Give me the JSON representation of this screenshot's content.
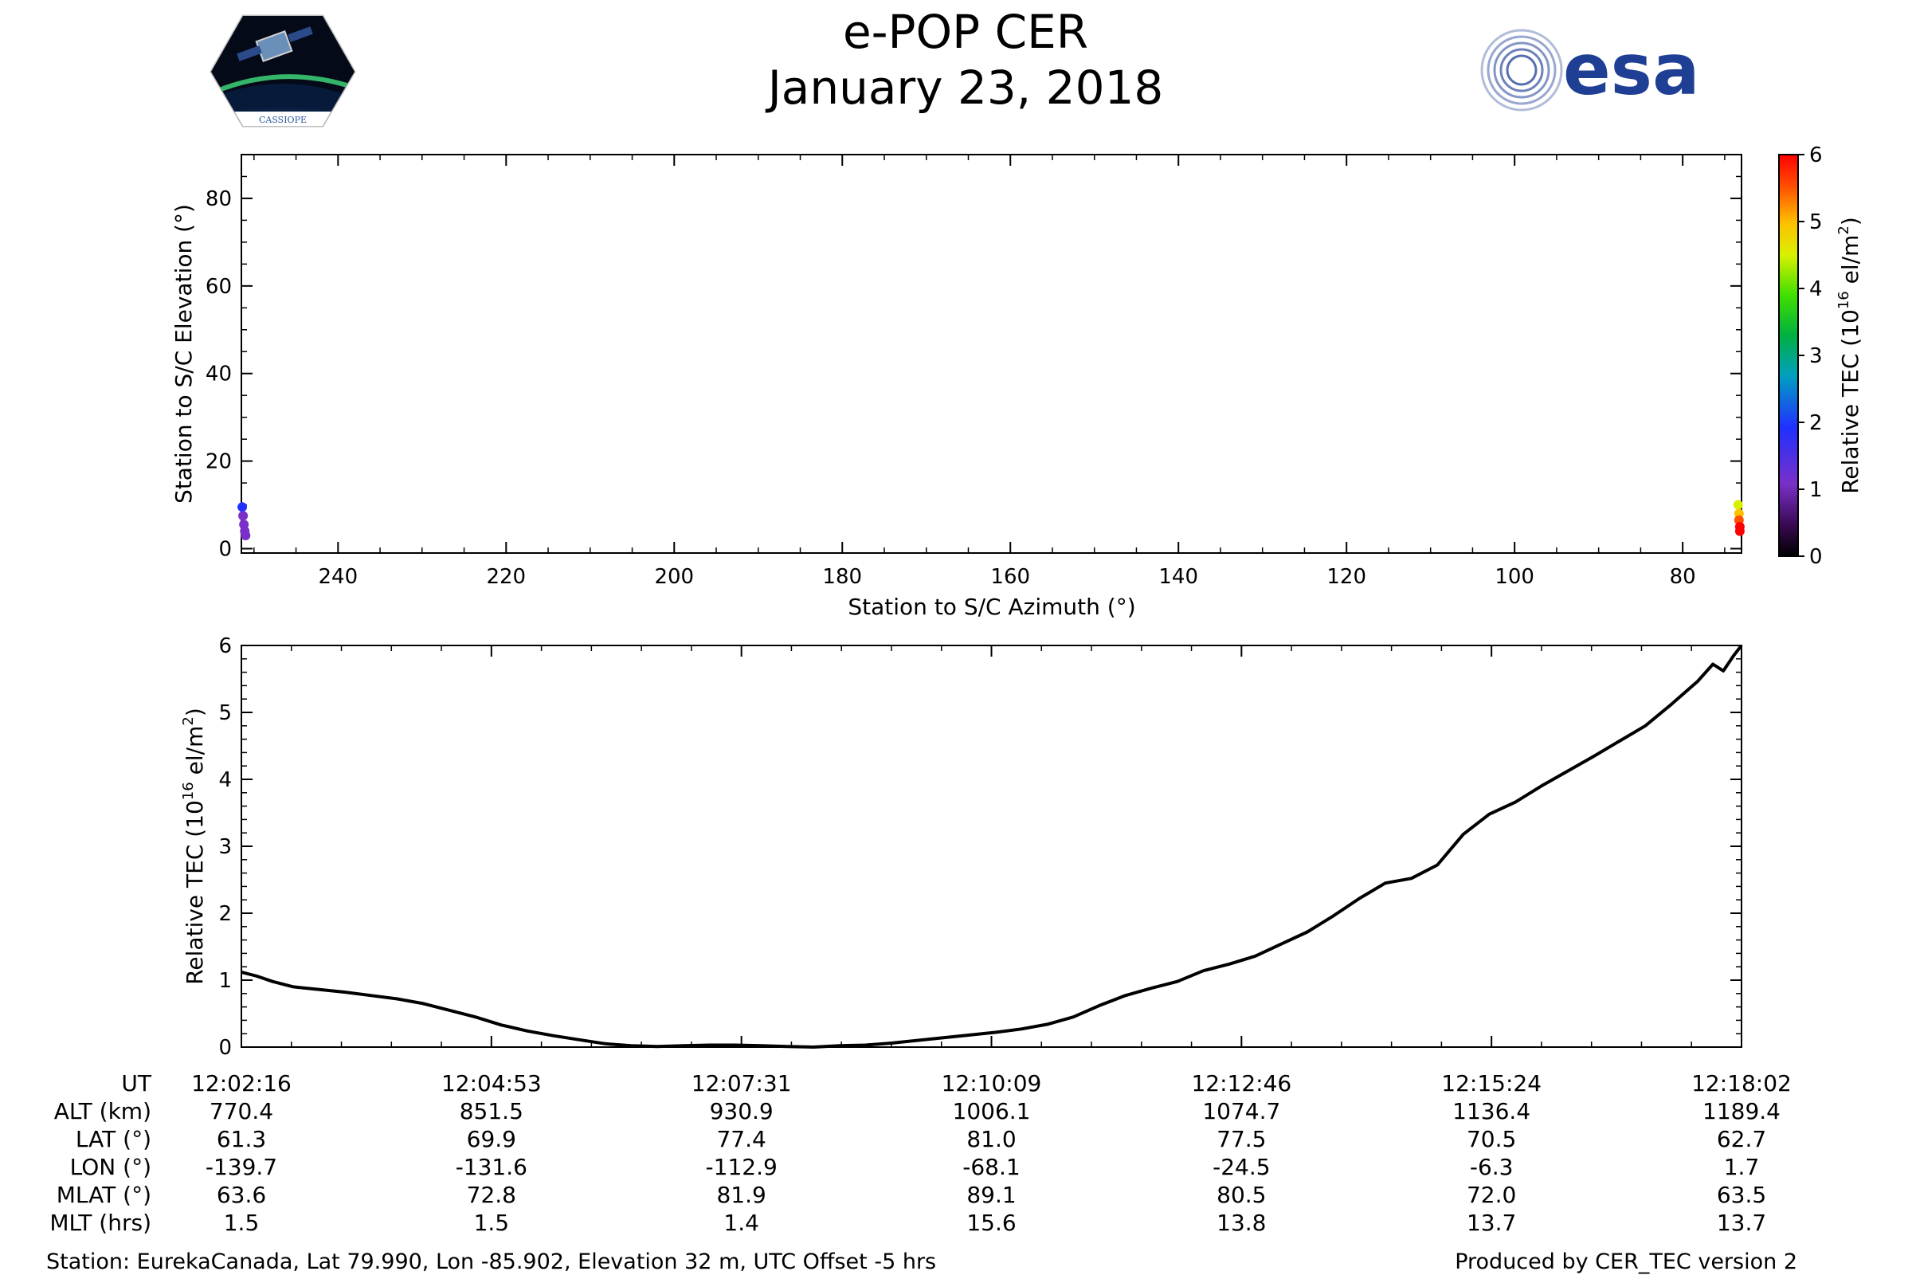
{
  "header": {
    "title": "e-POP CER",
    "date": "January 23, 2018",
    "logo_left_text": "CASSIOPE",
    "logo_right_text": "esa"
  },
  "colors": {
    "axis": "#000000",
    "tec_line": "#000000",
    "esa_blue": "#1f3f95"
  },
  "chart_data": [
    {
      "type": "scatter",
      "title": "",
      "xlabel": "Station to S/C Azimuth (°)",
      "ylabel": "Station to S/C Elevation (°)",
      "xlim": [
        251.5,
        73.0
      ],
      "ylim": [
        -1,
        90
      ],
      "xticks": [
        240,
        220,
        200,
        180,
        160,
        140,
        120,
        100,
        80
      ],
      "yticks": [
        0,
        20,
        40,
        60,
        80
      ],
      "colorbar": {
        "label": "Relative TEC (10^16 el/m^2)",
        "range": [
          0,
          6
        ],
        "ticks": [
          0,
          1,
          2,
          3,
          4,
          5,
          6
        ],
        "colormap": "rainbow"
      },
      "points": [
        {
          "az": 251.4,
          "el": 9.5,
          "tec": 1.1
        },
        {
          "az": 251.3,
          "el": 7.5,
          "tec": 1.0
        },
        {
          "az": 251.2,
          "el": 5.5,
          "tec": 0.9
        },
        {
          "az": 251.1,
          "el": 4.0,
          "tec": 0.8
        },
        {
          "az": 251.0,
          "el": 3.0,
          "tec": 0.7
        },
        {
          "az": 73.4,
          "el": 10.0,
          "tec": 4.5
        },
        {
          "az": 73.3,
          "el": 8.0,
          "tec": 5.0
        },
        {
          "az": 73.3,
          "el": 6.5,
          "tec": 5.4
        },
        {
          "az": 73.2,
          "el": 5.0,
          "tec": 5.7
        },
        {
          "az": 73.2,
          "el": 4.0,
          "tec": 5.9
        }
      ]
    },
    {
      "type": "line",
      "title": "",
      "xlabel": "UT",
      "ylabel": "Relative TEC (10^16 el/m^2)",
      "ylim": [
        0,
        6
      ],
      "yticks": [
        0,
        1,
        2,
        3,
        4,
        5,
        6
      ],
      "x_minutes_range": [
        0,
        15.77
      ],
      "series": [
        {
          "points": [
            [
              0.0,
              1.12
            ],
            [
              0.3,
              1.06
            ],
            [
              0.6,
              0.98
            ],
            [
              1.0,
              0.9
            ],
            [
              1.5,
              0.86
            ],
            [
              2.0,
              0.82
            ],
            [
              2.5,
              0.77
            ],
            [
              3.0,
              0.72
            ],
            [
              3.5,
              0.65
            ],
            [
              4.0,
              0.55
            ],
            [
              4.5,
              0.45
            ],
            [
              5.0,
              0.33
            ],
            [
              5.5,
              0.24
            ],
            [
              6.0,
              0.17
            ],
            [
              6.5,
              0.11
            ],
            [
              7.0,
              0.05
            ],
            [
              7.5,
              0.02
            ],
            [
              8.0,
              0.01
            ],
            [
              8.5,
              0.02
            ],
            [
              9.0,
              0.03
            ],
            [
              9.5,
              0.03
            ],
            [
              10.0,
              0.02
            ],
            [
              10.5,
              0.01
            ],
            [
              11.0,
              0.0
            ],
            [
              11.5,
              0.02
            ],
            [
              12.0,
              0.03
            ],
            [
              12.5,
              0.06
            ],
            [
              13.0,
              0.1
            ],
            [
              13.5,
              0.14
            ],
            [
              14.0,
              0.18
            ],
            [
              14.5,
              0.22
            ],
            [
              15.0,
              0.27
            ],
            [
              15.5,
              0.34
            ],
            [
              16.0,
              0.45
            ],
            [
              16.5,
              0.62
            ],
            [
              17.0,
              0.77
            ],
            [
              17.5,
              0.88
            ],
            [
              18.0,
              0.98
            ],
            [
              18.5,
              1.14
            ],
            [
              19.0,
              1.24
            ],
            [
              19.5,
              1.36
            ],
            [
              20.0,
              1.54
            ],
            [
              20.5,
              1.72
            ],
            [
              21.0,
              1.96
            ],
            [
              21.5,
              2.22
            ],
            [
              22.0,
              2.45
            ],
            [
              22.5,
              2.52
            ],
            [
              23.0,
              2.72
            ],
            [
              23.5,
              3.18
            ],
            [
              24.0,
              3.48
            ],
            [
              24.5,
              3.66
            ],
            [
              25.0,
              3.9
            ],
            [
              25.5,
              4.12
            ],
            [
              26.0,
              4.34
            ],
            [
              26.5,
              4.57
            ],
            [
              27.0,
              4.8
            ],
            [
              27.5,
              5.12
            ],
            [
              28.0,
              5.46
            ],
            [
              28.3,
              5.72
            ],
            [
              28.5,
              5.62
            ],
            [
              28.7,
              5.85
            ],
            [
              28.85,
              6.0
            ]
          ]
        }
      ]
    }
  ],
  "ephemeris_table": {
    "row_labels": [
      "UT",
      "ALT (km)",
      "LAT (°)",
      "LON (°)",
      "MLAT (°)",
      "MLT (hrs)"
    ],
    "columns": [
      {
        "UT": "12:02:16",
        "ALT": "770.4",
        "LAT": "61.3",
        "LON": "-139.7",
        "MLAT": "63.6",
        "MLT": "1.5"
      },
      {
        "UT": "12:04:53",
        "ALT": "851.5",
        "LAT": "69.9",
        "LON": "-131.6",
        "MLAT": "72.8",
        "MLT": "1.5"
      },
      {
        "UT": "12:07:31",
        "ALT": "930.9",
        "LAT": "77.4",
        "LON": "-112.9",
        "MLAT": "81.9",
        "MLT": "1.4"
      },
      {
        "UT": "12:10:09",
        "ALT": "1006.1",
        "LAT": "81.0",
        "LON": "-68.1",
        "MLAT": "89.1",
        "MLT": "15.6"
      },
      {
        "UT": "12:12:46",
        "ALT": "1074.7",
        "LAT": "77.5",
        "LON": "-24.5",
        "MLAT": "80.5",
        "MLT": "13.8"
      },
      {
        "UT": "12:15:24",
        "ALT": "1136.4",
        "LAT": "70.5",
        "LON": "-6.3",
        "MLAT": "72.0",
        "MLT": "13.7"
      },
      {
        "UT": "12:18:02",
        "ALT": "1189.4",
        "LAT": "62.7",
        "LON": "1.7",
        "MLAT": "63.5",
        "MLT": "13.7"
      }
    ]
  },
  "footer": {
    "station": "Station: EurekaCanada, Lat 79.990, Lon -85.902, Elevation 32 m, UTC Offset -5 hrs",
    "produced_by": "Produced by CER_TEC version 2"
  }
}
